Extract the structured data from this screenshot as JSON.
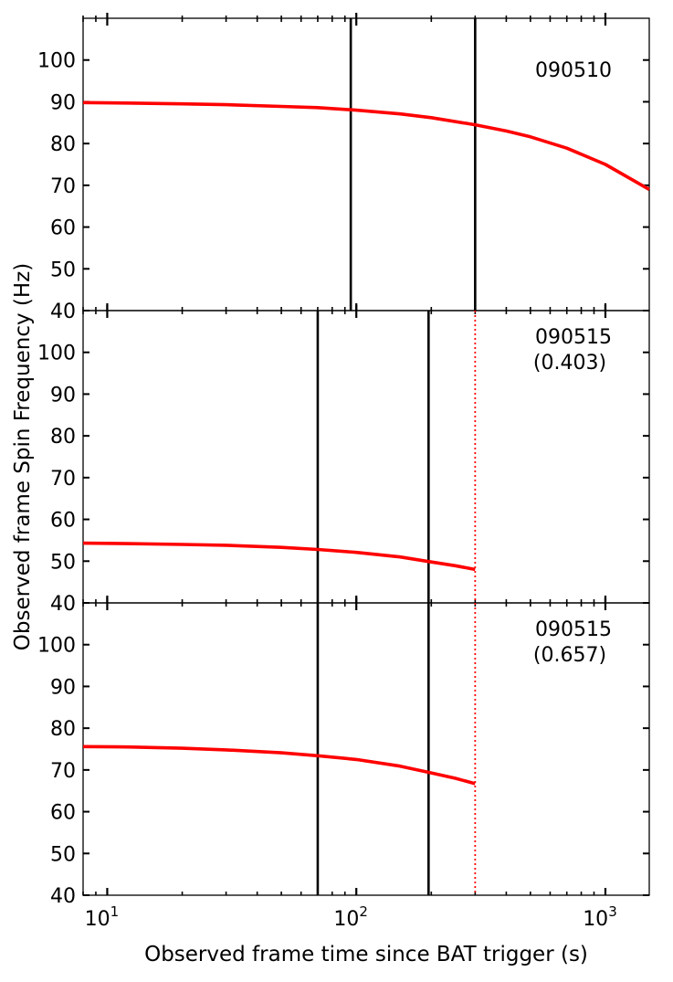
{
  "chart_data": {
    "type": "line",
    "xlabel": "Observed frame time since BAT trigger (s)",
    "ylabel": "Observed frame Spin Frequency (Hz)",
    "xscale": "log",
    "xlim": [
      8,
      1500
    ],
    "ylim": [
      40,
      110
    ],
    "x_ticks": [
      {
        "value": 10,
        "label": "10",
        "sup": "1"
      },
      {
        "value": 100,
        "label": "10",
        "sup": "2"
      },
      {
        "value": 1000,
        "label": "10",
        "sup": "3"
      }
    ],
    "y_ticks": [
      40,
      50,
      60,
      70,
      80,
      90,
      100
    ],
    "y_tick_labels": [
      "40",
      "50",
      "60",
      "70",
      "80",
      "90",
      "100"
    ],
    "colors": {
      "curve": "#ff0000",
      "vline": "#000000",
      "cutoff": "#ff0000"
    },
    "panels": [
      {
        "annotation": [
          "090510"
        ],
        "series": [
          {
            "x": [
              8,
              12,
              20,
              30,
              50,
              70,
              100,
              150,
              200,
              300,
              400,
              500,
              700,
              1000,
              1500
            ],
            "y": [
              89.8,
              89.7,
              89.5,
              89.3,
              88.9,
              88.6,
              88.0,
              87.1,
              86.2,
              84.5,
              83.0,
              81.6,
              78.9,
              75.0,
              69.0
            ]
          }
        ],
        "vlines": [
          95,
          300
        ],
        "cutoff": null
      },
      {
        "annotation": [
          "090515",
          "(0.403)"
        ],
        "series": [
          {
            "x": [
              8,
              12,
              20,
              30,
              50,
              70,
              100,
              150,
              200,
              250,
              300
            ],
            "y": [
              54.3,
              54.2,
              54.0,
              53.8,
              53.3,
              52.8,
              52.1,
              51.0,
              49.8,
              48.9,
              48.0
            ]
          }
        ],
        "vlines": [
          70,
          195
        ],
        "cutoff": 300
      },
      {
        "annotation": [
          "090515",
          "(0.657)"
        ],
        "series": [
          {
            "x": [
              8,
              12,
              20,
              30,
              50,
              70,
              100,
              150,
              200,
              250,
              300
            ],
            "y": [
              75.6,
              75.5,
              75.2,
              74.8,
              74.1,
              73.4,
              72.5,
              70.9,
              69.3,
              68.0,
              66.7
            ]
          }
        ],
        "vlines": [
          70,
          195
        ],
        "cutoff": 300
      }
    ]
  }
}
